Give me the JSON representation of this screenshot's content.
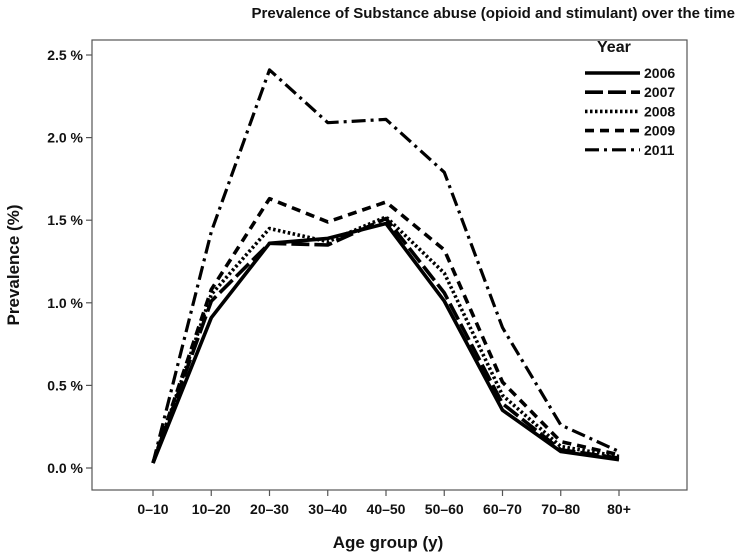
{
  "chart_data": {
    "type": "line",
    "title": "Prevalence of Substance abuse (opioid and stimulant) over the time",
    "xlabel": "Age group (y)",
    "ylabel": "Prevalence (%)",
    "categories": [
      "0–10",
      "10–20",
      "20–30",
      "30–40",
      "40–50",
      "50–60",
      "60–70",
      "70–80",
      "80+"
    ],
    "y_ticks": [
      "0.0 %",
      "0.5 %",
      "1.0 %",
      "1.5 %",
      "2.0 %",
      "2.5 %"
    ],
    "ylim": [
      0,
      2.6
    ],
    "grid": false,
    "legend_title": "Year",
    "legend_position": "top-right",
    "series": [
      {
        "name": "2006",
        "dash": "solid",
        "values": [
          0.03,
          0.91,
          1.36,
          1.39,
          1.48,
          1.01,
          0.35,
          0.1,
          0.05
        ]
      },
      {
        "name": "2007",
        "dash": "long-dash",
        "values": [
          0.03,
          1.01,
          1.36,
          1.35,
          1.51,
          1.06,
          0.39,
          0.11,
          0.06
        ]
      },
      {
        "name": "2008",
        "dash": "dotted",
        "values": [
          0.03,
          1.05,
          1.45,
          1.37,
          1.52,
          1.18,
          0.44,
          0.13,
          0.07
        ]
      },
      {
        "name": "2009",
        "dash": "dashed",
        "values": [
          0.03,
          1.08,
          1.63,
          1.49,
          1.61,
          1.32,
          0.52,
          0.16,
          0.08
        ]
      },
      {
        "name": "2011",
        "dash": "dash-dot",
        "values": [
          0.03,
          1.43,
          2.41,
          2.09,
          2.11,
          1.79,
          0.85,
          0.26,
          0.1
        ]
      }
    ]
  }
}
